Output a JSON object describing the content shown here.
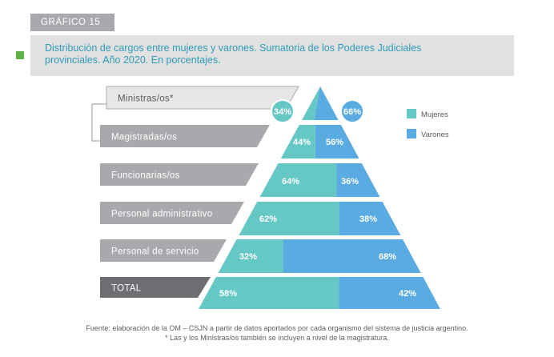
{
  "header": {
    "tag": "GRÁFICO 15",
    "title_line1": "Distribución de cargos entre mujeres y varones. Sumatoria de los Poderes Judiciales",
    "title_line2": "provinciales. Año 2020. En porcentajes."
  },
  "colors": {
    "mujeres": "#66c8c5",
    "varones": "#5aabe2",
    "label_light": "#e6e7e8",
    "label_mid": "#a7a9ac",
    "label_dark": "#808285",
    "label_darkest": "#6d6e71",
    "title_text": "#2f9bb5",
    "marker": "#5fb246"
  },
  "chart_data": {
    "type": "pyramid-stacked-bar",
    "title": "Distribución de cargos entre mujeres y varones. Sumatoria de los Poderes Judiciales provinciales. Año 2020. En porcentajes.",
    "categories": [
      "Ministras/os*",
      "Magistradas/os",
      "Funcionarias/os",
      "Personal administrativo",
      "Personal de servicio",
      "TOTAL"
    ],
    "series": [
      {
        "name": "Mujeres",
        "values": [
          34,
          44,
          64,
          62,
          32,
          58
        ],
        "labels": [
          "34%",
          "44%",
          "64%",
          "62%",
          "32%",
          "58%"
        ]
      },
      {
        "name": "Varones",
        "values": [
          66,
          56,
          36,
          38,
          68,
          42
        ],
        "labels": [
          "66%",
          "56%",
          "36%",
          "38%",
          "68%",
          "42%"
        ]
      }
    ],
    "legend": [
      "Mujeres",
      "Varones"
    ],
    "legend_position": "right"
  },
  "footer": {
    "source": "Fuente: elaboración de la OM – CSJN a partir de datos aportados por cada organismo del sistema de justicia argentino.",
    "note": "* Las y los Ministras/os también se incluyen a nivel de la magistratura."
  }
}
